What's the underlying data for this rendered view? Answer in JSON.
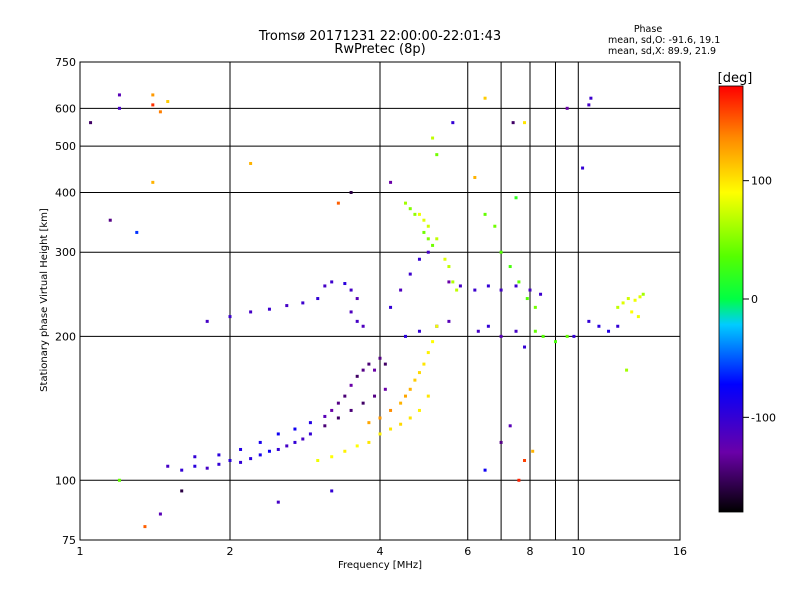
{
  "chart_data": {
    "type": "scatter",
    "title": "Tromsø 20171231 22:00:00-22:01:43",
    "subtitle": "RwPretec (8p)",
    "xlabel": "Frequency [MHz]",
    "ylabel": "Stationary phase Virtual Height [km]",
    "xscale": "log",
    "yscale": "log",
    "xlim": [
      1,
      16
    ],
    "ylim": [
      75,
      750
    ],
    "xticks": [
      {
        "value": 1,
        "label": "1"
      },
      {
        "value": 2,
        "label": "2"
      },
      {
        "value": 4,
        "label": "4"
      },
      {
        "value": 6,
        "label": "6"
      },
      {
        "value": 8,
        "label": "8"
      },
      {
        "value": 10,
        "label": "10"
      },
      {
        "value": 16,
        "label": "16"
      }
    ],
    "x_minor_grid": [
      7,
      9
    ],
    "yticks": [
      {
        "value": 75,
        "label": "75"
      },
      {
        "value": 100,
        "label": "100"
      },
      {
        "value": 200,
        "label": "200"
      },
      {
        "value": 300,
        "label": "300"
      },
      {
        "value": 400,
        "label": "400"
      },
      {
        "value": 500,
        "label": "500"
      },
      {
        "value": 600,
        "label": "600"
      },
      {
        "value": 750,
        "label": "750"
      }
    ],
    "grid": true,
    "stats": {
      "heading": "Phase",
      "line_o": "mean, sd,O: -91.6, 19.1",
      "line_x": "mean, sd,X:  89.9, 21.9"
    },
    "colorbar": {
      "label": "[deg]",
      "range": [
        -180,
        180
      ],
      "ticks": [
        {
          "value": 100,
          "label": "100"
        },
        {
          "value": 0,
          "label": "0"
        },
        {
          "value": -100,
          "label": "-100"
        }
      ]
    },
    "series": [
      {
        "name": "O-mode traces",
        "points": [
          [
            1.5,
            107,
            -110
          ],
          [
            1.6,
            105,
            -100
          ],
          [
            1.7,
            107,
            -95
          ],
          [
            1.8,
            106,
            -110
          ],
          [
            1.9,
            108,
            -100
          ],
          [
            2.0,
            110,
            -95
          ],
          [
            2.1,
            109,
            -100
          ],
          [
            2.2,
            111,
            -95
          ],
          [
            2.3,
            113,
            -85
          ],
          [
            2.4,
            115,
            -80
          ],
          [
            2.5,
            116,
            -100
          ],
          [
            2.6,
            118,
            -110
          ],
          [
            2.7,
            120,
            -100
          ],
          [
            2.8,
            122,
            -110
          ],
          [
            2.9,
            125,
            -100
          ],
          [
            1.7,
            112,
            -100
          ],
          [
            1.9,
            113,
            -95
          ],
          [
            2.1,
            116,
            -90
          ],
          [
            2.3,
            120,
            -85
          ],
          [
            2.5,
            125,
            -80
          ],
          [
            2.7,
            128,
            -80
          ],
          [
            2.9,
            132,
            -90
          ],
          [
            3.1,
            136,
            -120
          ],
          [
            3.2,
            140,
            -130
          ],
          [
            3.3,
            145,
            -140
          ],
          [
            3.4,
            150,
            -145
          ],
          [
            3.5,
            158,
            -130
          ],
          [
            3.6,
            165,
            -150
          ],
          [
            3.7,
            170,
            -140
          ],
          [
            3.8,
            175,
            -145
          ],
          [
            3.9,
            170,
            -130
          ],
          [
            4.0,
            180,
            -140
          ],
          [
            4.1,
            175,
            -150
          ],
          [
            3.1,
            130,
            -145
          ],
          [
            3.3,
            135,
            -150
          ],
          [
            3.5,
            140,
            -145
          ],
          [
            3.7,
            145,
            -150
          ],
          [
            3.9,
            150,
            -140
          ],
          [
            4.1,
            155,
            -130
          ],
          [
            1.8,
            215,
            -110
          ],
          [
            2.0,
            220,
            -105
          ],
          [
            2.2,
            225,
            -110
          ],
          [
            2.4,
            228,
            -105
          ],
          [
            2.6,
            232,
            -110
          ],
          [
            2.8,
            235,
            -105
          ],
          [
            3.0,
            240,
            -100
          ],
          [
            3.1,
            255,
            -110
          ],
          [
            3.2,
            260,
            -105
          ],
          [
            3.4,
            258,
            -95
          ],
          [
            3.5,
            250,
            -110
          ],
          [
            3.6,
            240,
            -120
          ],
          [
            3.5,
            225,
            -115
          ],
          [
            3.6,
            215,
            -110
          ],
          [
            3.7,
            210,
            -115
          ],
          [
            4.2,
            230,
            -100
          ],
          [
            4.4,
            250,
            -115
          ],
          [
            4.6,
            270,
            -105
          ],
          [
            4.8,
            290,
            -100
          ],
          [
            5.0,
            300,
            -110
          ],
          [
            4.5,
            200,
            -95
          ],
          [
            4.8,
            205,
            -100
          ],
          [
            5.2,
            210,
            -130
          ],
          [
            5.5,
            215,
            -120
          ],
          [
            6.3,
            205,
            -110
          ],
          [
            6.6,
            210,
            -100
          ],
          [
            7.0,
            200,
            -120
          ],
          [
            7.5,
            205,
            -110
          ],
          [
            7.8,
            190,
            -100
          ],
          [
            5.5,
            260,
            -130
          ],
          [
            5.8,
            255,
            -110
          ],
          [
            6.2,
            250,
            -105
          ],
          [
            6.6,
            255,
            -100
          ],
          [
            7.0,
            250,
            -110
          ],
          [
            7.5,
            255,
            -105
          ],
          [
            8.0,
            250,
            -110
          ],
          [
            8.4,
            245,
            -105
          ],
          [
            10.5,
            215,
            -100
          ],
          [
            11.0,
            210,
            -95
          ],
          [
            11.5,
            205,
            -90
          ],
          [
            12.0,
            210,
            -100
          ]
        ]
      },
      {
        "name": "X-mode traces",
        "points": [
          [
            3.0,
            110,
            85
          ],
          [
            3.2,
            112,
            90
          ],
          [
            3.4,
            115,
            95
          ],
          [
            3.6,
            118,
            90
          ],
          [
            3.8,
            120,
            100
          ],
          [
            4.0,
            125,
            95
          ],
          [
            4.2,
            128,
            100
          ],
          [
            4.4,
            131,
            105
          ],
          [
            4.6,
            135,
            100
          ],
          [
            4.8,
            140,
            95
          ],
          [
            5.0,
            150,
            100
          ],
          [
            3.8,
            132,
            125
          ],
          [
            4.0,
            135,
            130
          ],
          [
            4.2,
            140,
            135
          ],
          [
            4.4,
            145,
            120
          ],
          [
            4.5,
            150,
            125
          ],
          [
            4.6,
            155,
            120
          ],
          [
            4.7,
            162,
            110
          ],
          [
            4.8,
            168,
            105
          ],
          [
            4.9,
            175,
            100
          ],
          [
            5.0,
            185,
            95
          ],
          [
            5.1,
            195,
            90
          ],
          [
            5.2,
            210,
            85
          ],
          [
            4.8,
            360,
            85
          ],
          [
            4.9,
            350,
            80
          ],
          [
            5.0,
            340,
            75
          ],
          [
            5.2,
            320,
            70
          ],
          [
            5.4,
            290,
            80
          ],
          [
            5.5,
            280,
            70
          ],
          [
            5.6,
            260,
            65
          ],
          [
            5.7,
            250,
            70
          ],
          [
            4.5,
            380,
            60
          ],
          [
            4.6,
            370,
            50
          ],
          [
            4.7,
            360,
            55
          ],
          [
            4.9,
            330,
            45
          ],
          [
            5.0,
            320,
            50
          ],
          [
            5.1,
            310,
            45
          ],
          [
            6.5,
            360,
            40
          ],
          [
            6.8,
            340,
            45
          ],
          [
            7.0,
            300,
            35
          ],
          [
            7.3,
            280,
            30
          ],
          [
            7.6,
            260,
            40
          ],
          [
            7.9,
            240,
            35
          ],
          [
            8.2,
            230,
            45
          ],
          [
            8.2,
            205,
            40
          ],
          [
            8.5,
            200,
            35
          ],
          [
            9.0,
            195,
            30
          ],
          [
            9.5,
            200,
            40
          ],
          [
            12.0,
            230,
            70
          ],
          [
            12.3,
            235,
            80
          ],
          [
            12.6,
            240,
            75
          ],
          [
            13.0,
            238,
            85
          ],
          [
            13.3,
            242,
            80
          ],
          [
            13.5,
            245,
            60
          ],
          [
            12.8,
            225,
            90
          ],
          [
            13.2,
            220,
            85
          ]
        ]
      },
      {
        "name": "Scattered echoes",
        "points": [
          [
            1.2,
            640,
            -120
          ],
          [
            1.2,
            600,
            -110
          ],
          [
            1.4,
            610,
            165
          ],
          [
            1.5,
            620,
            110
          ],
          [
            1.05,
            560,
            -150
          ],
          [
            1.15,
            350,
            -140
          ],
          [
            1.3,
            330,
            -60
          ],
          [
            1.4,
            420,
            120
          ],
          [
            1.45,
            590,
            140
          ],
          [
            1.4,
            640,
            130
          ],
          [
            1.2,
            100,
            40
          ],
          [
            1.35,
            80,
            150
          ],
          [
            1.45,
            85,
            -120
          ],
          [
            1.6,
            95,
            -160
          ],
          [
            2.5,
            90,
            -110
          ],
          [
            3.2,
            95,
            -100
          ],
          [
            2.2,
            460,
            120
          ],
          [
            3.3,
            380,
            150
          ],
          [
            3.5,
            400,
            -160
          ],
          [
            4.2,
            420,
            -130
          ],
          [
            5.1,
            520,
            70
          ],
          [
            5.2,
            480,
            45
          ],
          [
            5.6,
            560,
            -100
          ],
          [
            6.2,
            430,
            120
          ],
          [
            6.5,
            630,
            110
          ],
          [
            7.4,
            560,
            -150
          ],
          [
            7.5,
            390,
            20
          ],
          [
            7.8,
            560,
            100
          ],
          [
            9.5,
            600,
            -130
          ],
          [
            10.5,
            610,
            -110
          ],
          [
            10.2,
            450,
            -100
          ],
          [
            10.6,
            630,
            -105
          ],
          [
            7.0,
            120,
            -140
          ],
          [
            7.3,
            130,
            -120
          ],
          [
            7.8,
            110,
            160
          ],
          [
            8.1,
            115,
            120
          ],
          [
            9.8,
            200,
            -100
          ],
          [
            12.5,
            170,
            60
          ],
          [
            6.5,
            105,
            -80
          ],
          [
            7.6,
            100,
            170
          ]
        ]
      }
    ]
  }
}
